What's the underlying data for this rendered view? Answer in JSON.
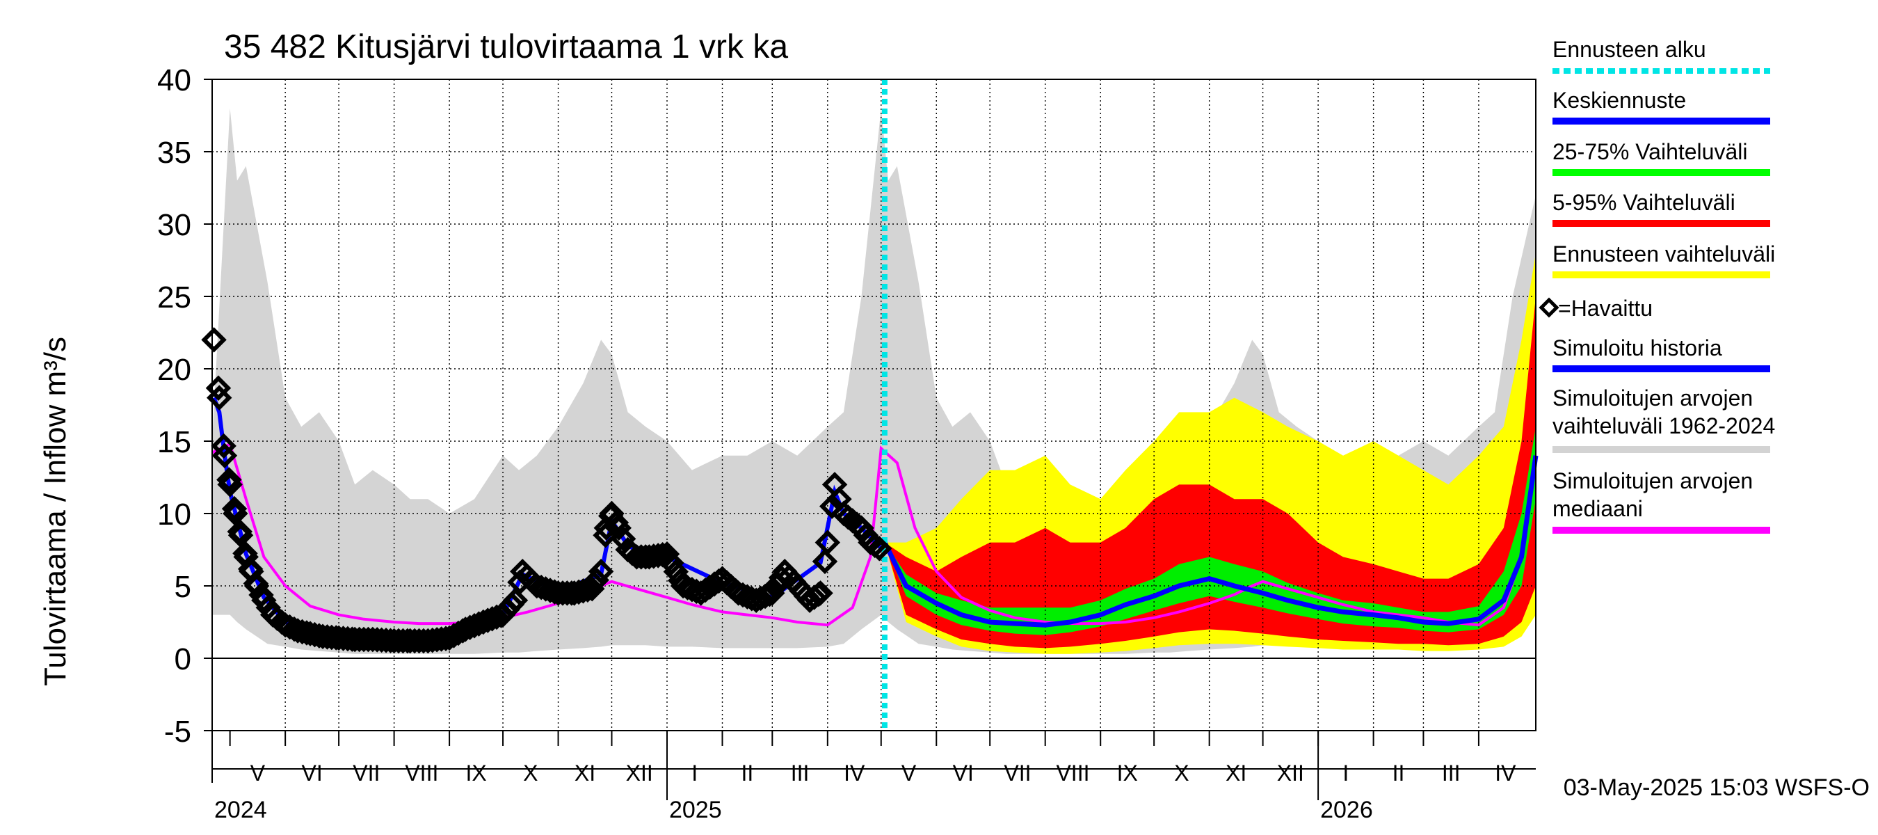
{
  "chart_data": {
    "type": "area",
    "title": "35 482 Kitusjärvi tulovirtaama 1 vrk ka",
    "ylabel": "Tulovirtaama / Inflow    m³/s",
    "ylim": [
      -5,
      40
    ],
    "yticks": [
      -5,
      0,
      5,
      10,
      15,
      20,
      25,
      30,
      35,
      40
    ],
    "x_range": [
      "2024-04-21",
      "2026-05-03"
    ],
    "forecast_start": "2025-05-03",
    "months": [
      {
        "label": "V",
        "start": "2024-05-01",
        "end": "2024-06-01"
      },
      {
        "label": "VI",
        "start": "2024-06-01",
        "end": "2024-07-01"
      },
      {
        "label": "VII",
        "start": "2024-07-01",
        "end": "2024-08-01"
      },
      {
        "label": "VIII",
        "start": "2024-08-01",
        "end": "2024-09-01"
      },
      {
        "label": "IX",
        "start": "2024-09-01",
        "end": "2024-10-01"
      },
      {
        "label": "X",
        "start": "2024-10-01",
        "end": "2024-11-01"
      },
      {
        "label": "XI",
        "start": "2024-11-01",
        "end": "2024-12-01"
      },
      {
        "label": "XII",
        "start": "2024-12-01",
        "end": "2025-01-01"
      },
      {
        "label": "I",
        "start": "2025-01-01",
        "end": "2025-02-01"
      },
      {
        "label": "II",
        "start": "2025-02-01",
        "end": "2025-03-01"
      },
      {
        "label": "III",
        "start": "2025-03-01",
        "end": "2025-04-01"
      },
      {
        "label": "IV",
        "start": "2025-04-01",
        "end": "2025-05-01"
      },
      {
        "label": "V",
        "start": "2025-05-01",
        "end": "2025-06-01"
      },
      {
        "label": "VI",
        "start": "2025-06-01",
        "end": "2025-07-01"
      },
      {
        "label": "VII",
        "start": "2025-07-01",
        "end": "2025-08-01"
      },
      {
        "label": "VIII",
        "start": "2025-08-01",
        "end": "2025-09-01"
      },
      {
        "label": "IX",
        "start": "2025-09-01",
        "end": "2025-10-01"
      },
      {
        "label": "X",
        "start": "2025-10-01",
        "end": "2025-11-01"
      },
      {
        "label": "XI",
        "start": "2025-11-01",
        "end": "2025-12-01"
      },
      {
        "label": "XII",
        "start": "2025-12-01",
        "end": "2026-01-01"
      },
      {
        "label": "I",
        "start": "2026-01-01",
        "end": "2026-02-01"
      },
      {
        "label": "II",
        "start": "2026-02-01",
        "end": "2026-03-01"
      },
      {
        "label": "III",
        "start": "2026-03-01",
        "end": "2026-04-01"
      },
      {
        "label": "IV",
        "start": "2026-04-01",
        "end": "2026-05-01"
      }
    ],
    "years": [
      {
        "label": "2024",
        "date": "2024-04-21"
      },
      {
        "label": "2025",
        "date": "2025-01-01"
      },
      {
        "label": "2026",
        "date": "2026-01-01"
      }
    ],
    "footer": "03-May-2025 15:03 WSFS-O",
    "legend": [
      {
        "label": "Ennusteen alku",
        "color": "#00e5e5",
        "style": "dotted"
      },
      {
        "label": "Keskiennuste",
        "color": "#0000ff",
        "style": "line"
      },
      {
        "label": "25-75% Vaihteluväli",
        "color": "#00ff00",
        "style": "line"
      },
      {
        "label": "5-95% Vaihteluväli",
        "color": "#ff0000",
        "style": "line"
      },
      {
        "label": "Ennusteen vaihteluväli",
        "color": "#ffff00",
        "style": "line"
      },
      {
        "label": "=Havaittu",
        "color": "#000000",
        "style": "marker"
      },
      {
        "label": "Simuloitu historia",
        "color": "#0000ff",
        "style": "line"
      },
      {
        "label": "Simuloitujen arvojen vaihteluväli 1962-2024",
        "lines": [
          "Simuloitujen arvojen",
          "vaihteluväli 1962-2024"
        ],
        "color": "#d3d3d3",
        "style": "line"
      },
      {
        "label": "Simuloitujen arvojen mediaani",
        "lines": [
          "Simuloitujen arvojen",
          "mediaani"
        ],
        "color": "#ff00ff",
        "style": "line"
      }
    ],
    "series": {
      "hist_range": {
        "x": [
          "2024-04-21",
          "2024-05-01",
          "2024-05-05",
          "2024-05-10",
          "2024-05-16",
          "2024-05-22",
          "2024-06-01",
          "2024-06-10",
          "2024-06-20",
          "2024-07-01",
          "2024-07-10",
          "2024-07-20",
          "2024-08-01",
          "2024-08-10",
          "2024-08-20",
          "2024-09-01",
          "2024-09-15",
          "2024-10-01",
          "2024-10-10",
          "2024-10-20",
          "2024-11-01",
          "2024-11-15",
          "2024-11-25",
          "2024-12-01",
          "2024-12-10",
          "2024-12-20",
          "2025-01-01",
          "2025-01-15",
          "2025-02-01",
          "2025-02-15",
          "2025-03-01",
          "2025-03-15",
          "2025-04-01",
          "2025-04-10",
          "2025-04-20",
          "2025-05-01",
          "2025-05-05",
          "2025-05-10",
          "2025-05-16",
          "2025-05-22",
          "2025-06-01",
          "2025-06-10",
          "2025-06-20",
          "2025-07-01",
          "2025-07-10",
          "2025-07-20",
          "2025-08-01",
          "2025-08-10",
          "2025-08-20",
          "2025-09-01",
          "2025-09-15",
          "2025-10-01",
          "2025-10-10",
          "2025-10-20",
          "2025-11-01",
          "2025-11-15",
          "2025-11-25",
          "2025-12-01",
          "2025-12-10",
          "2025-12-20",
          "2026-01-01",
          "2026-01-15",
          "2026-02-01",
          "2026-02-15",
          "2026-03-01",
          "2026-03-15",
          "2026-04-01",
          "2026-04-10",
          "2026-04-20",
          "2026-05-03"
        ],
        "max": [
          15,
          38,
          33,
          34,
          30,
          26,
          18,
          16,
          17,
          15,
          12,
          13,
          12,
          11,
          11,
          10,
          11,
          14,
          13,
          14,
          16,
          19,
          22,
          21,
          17,
          16,
          15,
          13,
          14,
          14,
          15,
          14,
          16,
          17,
          25,
          38,
          33,
          34,
          30,
          26,
          18,
          16,
          17,
          15,
          12,
          13,
          12,
          11,
          11,
          10,
          11,
          14,
          13,
          14,
          16,
          19,
          22,
          21,
          17,
          16,
          15,
          13,
          14,
          14,
          15,
          14,
          16,
          17,
          25,
          32
        ],
        "min": [
          3,
          3,
          2.5,
          2,
          1.5,
          1,
          0.8,
          0.6,
          0.5,
          0.4,
          0.3,
          0.3,
          0.3,
          0.3,
          0.3,
          0.3,
          0.3,
          0.4,
          0.4,
          0.5,
          0.6,
          0.7,
          0.8,
          0.9,
          0.9,
          0.9,
          0.8,
          0.8,
          0.7,
          0.7,
          0.7,
          0.7,
          0.8,
          1,
          2,
          3,
          2.5,
          2,
          1.5,
          1,
          0.8,
          0.6,
          0.5,
          0.4,
          0.3,
          0.3,
          0.3,
          0.3,
          0.3,
          0.3,
          0.3,
          0.4,
          0.4,
          0.5,
          0.6,
          0.7,
          0.8,
          0.9,
          0.9,
          0.9,
          0.8,
          0.8,
          0.7,
          0.7,
          0.7,
          0.7,
          0.8,
          1,
          2,
          3
        ]
      },
      "median": {
        "x": [
          "2024-04-21",
          "2024-05-01",
          "2024-05-10",
          "2024-05-20",
          "2024-06-01",
          "2024-06-15",
          "2024-07-01",
          "2024-07-15",
          "2024-08-01",
          "2024-08-15",
          "2024-09-01",
          "2024-09-15",
          "2024-10-01",
          "2024-10-15",
          "2024-11-01",
          "2024-11-15",
          "2024-11-25",
          "2024-12-01",
          "2024-12-15",
          "2025-01-01",
          "2025-01-15",
          "2025-02-01",
          "2025-02-15",
          "2025-03-01",
          "2025-03-15",
          "2025-04-01",
          "2025-04-15",
          "2025-04-25",
          "2025-05-01",
          "2025-05-10",
          "2025-05-20",
          "2025-06-01",
          "2025-06-15",
          "2025-07-01",
          "2025-07-15",
          "2025-08-01",
          "2025-08-15",
          "2025-09-01",
          "2025-09-15",
          "2025-10-01",
          "2025-10-15",
          "2025-11-01",
          "2025-11-15",
          "2025-11-25",
          "2025-12-01",
          "2025-12-15",
          "2026-01-01",
          "2026-01-15",
          "2026-02-01",
          "2026-02-15",
          "2026-03-01",
          "2026-03-15",
          "2026-04-01",
          "2026-04-15",
          "2026-04-25",
          "2026-05-03"
        ],
        "y": [
          14.2,
          14.8,
          11,
          7,
          5,
          3.6,
          3,
          2.7,
          2.5,
          2.4,
          2.4,
          2.5,
          2.8,
          3.2,
          3.8,
          4.4,
          5,
          5.3,
          4.8,
          4.2,
          3.7,
          3.2,
          3,
          2.8,
          2.5,
          2.3,
          3.5,
          7,
          14.5,
          13.5,
          9,
          6,
          4.2,
          3.3,
          2.8,
          2.5,
          2.4,
          2.4,
          2.5,
          2.8,
          3.2,
          3.8,
          4.4,
          5,
          5.3,
          4.8,
          4.2,
          3.7,
          3.2,
          3,
          2.8,
          2.5,
          2.3,
          3.5,
          7,
          14
        ]
      },
      "forecast_envelope": {
        "x": [
          "2025-05-03",
          "2025-05-15",
          "2025-06-01",
          "2025-06-15",
          "2025-07-01",
          "2025-07-15",
          "2025-08-01",
          "2025-08-15",
          "2025-09-01",
          "2025-09-15",
          "2025-10-01",
          "2025-10-15",
          "2025-11-01",
          "2025-11-15",
          "2025-12-01",
          "2025-12-15",
          "2026-01-01",
          "2026-01-15",
          "2026-02-01",
          "2026-02-15",
          "2026-03-01",
          "2026-03-15",
          "2026-04-01",
          "2026-04-15",
          "2026-04-25",
          "2026-05-03"
        ],
        "y_max": [
          8,
          8,
          9,
          11,
          13,
          13,
          14,
          12,
          11,
          13,
          15,
          17,
          17,
          18,
          17,
          16,
          15,
          14,
          15,
          14,
          13,
          12,
          14,
          16,
          22,
          28
        ],
        "p95": [
          8,
          7,
          6,
          7,
          8,
          8,
          9,
          8,
          8,
          9,
          11,
          12,
          12,
          11,
          11,
          10,
          8,
          7,
          6.5,
          6,
          5.5,
          5.5,
          6.5,
          9,
          15,
          25
        ],
        "p75": [
          8,
          5.8,
          4.5,
          4,
          3.5,
          3.5,
          3.5,
          3.5,
          4,
          4.8,
          5.5,
          6.5,
          7,
          6.5,
          6,
          5.2,
          4.5,
          4,
          3.8,
          3.5,
          3.2,
          3.2,
          3.6,
          6,
          10,
          16
        ],
        "mean": [
          8,
          5,
          3.8,
          3,
          2.5,
          2.4,
          2.3,
          2.5,
          3,
          3.7,
          4.3,
          5,
          5.5,
          5,
          4.5,
          4,
          3.5,
          3.2,
          3,
          2.8,
          2.5,
          2.4,
          2.7,
          4,
          7,
          14
        ],
        "p25": [
          8,
          4.3,
          3,
          2.3,
          1.9,
          1.7,
          1.6,
          1.8,
          2.2,
          2.7,
          3.3,
          3.8,
          4.3,
          3.9,
          3.5,
          3.1,
          2.7,
          2.4,
          2.2,
          2.1,
          1.9,
          1.8,
          2,
          3,
          5,
          11
        ],
        "p5": [
          8,
          3,
          2,
          1.3,
          1,
          0.8,
          0.7,
          0.8,
          1,
          1.2,
          1.5,
          1.8,
          2,
          1.9,
          1.7,
          1.5,
          1.3,
          1.2,
          1.1,
          1,
          1,
          0.9,
          1,
          1.5,
          2.5,
          5
        ],
        "y_min": [
          8,
          2.5,
          1.5,
          0.8,
          0.5,
          0.4,
          0.3,
          0.3,
          0.4,
          0.5,
          0.7,
          0.9,
          1,
          1,
          0.9,
          0.8,
          0.7,
          0.6,
          0.6,
          0.6,
          0.5,
          0.5,
          0.6,
          0.8,
          1.5,
          3
        ]
      },
      "observed": {
        "x": [
          "2024-04-22",
          "2024-04-25",
          "2024-04-28",
          "2024-05-01",
          "2024-05-04",
          "2024-05-07",
          "2024-05-10",
          "2024-05-13",
          "2024-05-16",
          "2024-05-20",
          "2024-05-25",
          "2024-06-01",
          "2024-06-08",
          "2024-06-15",
          "2024-06-22",
          "2024-07-01",
          "2024-07-10",
          "2024-07-20",
          "2024-08-01",
          "2024-08-10",
          "2024-08-20",
          "2024-09-01",
          "2024-09-10",
          "2024-09-20",
          "2024-10-01",
          "2024-10-08",
          "2024-10-12",
          "2024-10-20",
          "2024-11-01",
          "2024-11-10",
          "2024-11-20",
          "2024-11-25",
          "2024-11-28",
          "2024-12-01",
          "2024-12-05",
          "2024-12-10",
          "2024-12-15",
          "2024-12-22",
          "2025-01-01",
          "2025-01-10",
          "2025-01-20",
          "2025-02-01",
          "2025-02-10",
          "2025-02-20",
          "2025-03-01",
          "2025-03-08",
          "2025-03-15",
          "2025-03-22",
          "2025-03-28",
          "2025-04-01",
          "2025-04-05",
          "2025-04-10",
          "2025-04-15",
          "2025-04-20",
          "2025-04-25",
          "2025-05-01"
        ],
        "y": [
          22,
          18,
          14,
          12,
          10,
          8.5,
          7,
          6,
          5,
          4,
          3,
          2.3,
          1.9,
          1.7,
          1.5,
          1.4,
          1.3,
          1.3,
          1.2,
          1.2,
          1.2,
          1.4,
          2,
          2.5,
          3,
          4,
          6,
          5,
          4.5,
          4.5,
          4.8,
          6,
          9,
          10,
          9,
          7.5,
          7,
          7,
          7.2,
          5,
          4.5,
          5.5,
          4.5,
          4,
          4.5,
          6,
          5,
          4,
          4.5,
          8,
          12,
          10,
          9.5,
          9,
          8,
          7.5
        ]
      },
      "sim_history": {
        "x": [
          "2024-04-22",
          "2024-04-25",
          "2024-04-28",
          "2024-05-01",
          "2024-05-10",
          "2024-05-20",
          "2024-06-01",
          "2024-06-15",
          "2024-07-01",
          "2024-08-01",
          "2024-09-01",
          "2024-10-01",
          "2024-10-12",
          "2024-11-01",
          "2024-11-25",
          "2024-12-01",
          "2024-12-10",
          "2024-12-22",
          "2025-01-01",
          "2025-02-01",
          "2025-03-01",
          "2025-03-28",
          "2025-04-05",
          "2025-04-10",
          "2025-04-20",
          "2025-05-01"
        ],
        "y": [
          18,
          17,
          14,
          11.5,
          7.2,
          4.2,
          2.5,
          1.8,
          1.5,
          1.3,
          1.5,
          3,
          5.8,
          4.6,
          5.8,
          9.5,
          7.8,
          7,
          7,
          5.2,
          4.2,
          6.6,
          11.5,
          10,
          9,
          7.6
        ]
      }
    }
  }
}
